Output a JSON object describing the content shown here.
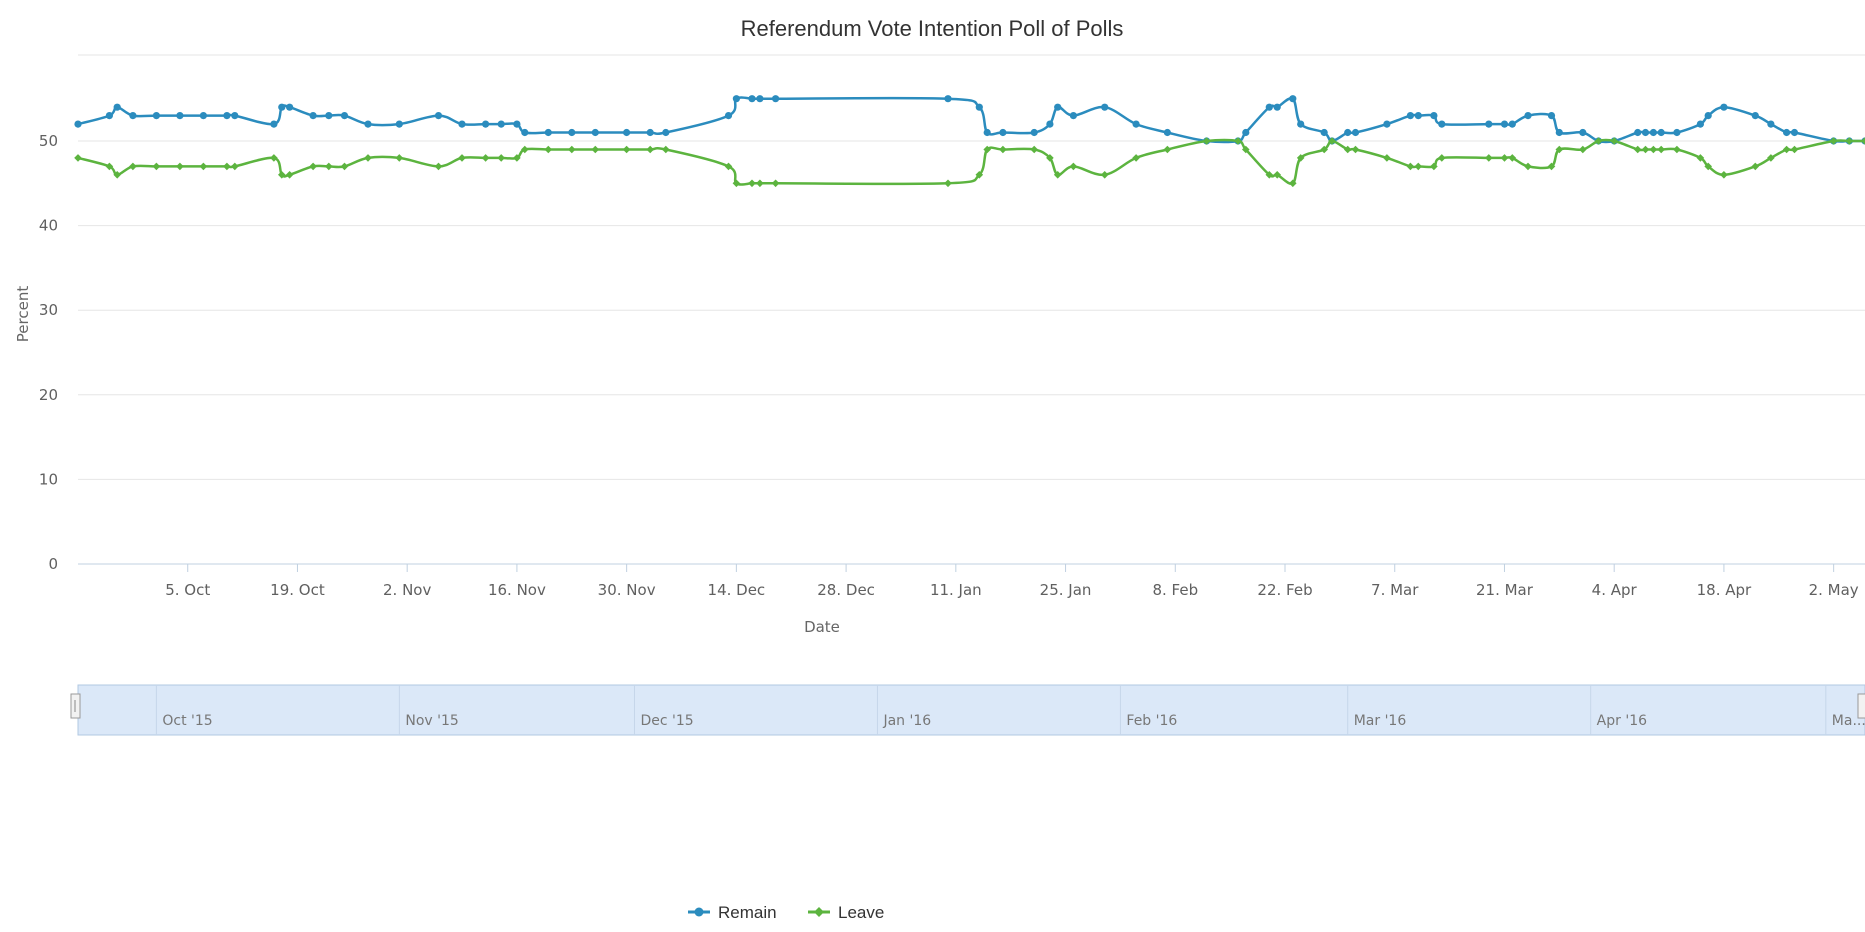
{
  "chart_data": {
    "type": "line",
    "title": "Referendum Vote Intention Poll of Polls",
    "xlabel": "Date",
    "ylabel": "Percent",
    "ylim": [
      0,
      50
    ],
    "yticks": [
      0,
      10,
      20,
      30,
      40,
      50
    ],
    "xlim": [
      "2015-09-21",
      "2016-05-06"
    ],
    "xticks": [
      {
        "date": "2015-10-05",
        "label": "5. Oct"
      },
      {
        "date": "2015-10-19",
        "label": "19. Oct"
      },
      {
        "date": "2015-11-02",
        "label": "2. Nov"
      },
      {
        "date": "2015-11-16",
        "label": "16. Nov"
      },
      {
        "date": "2015-11-30",
        "label": "30. Nov"
      },
      {
        "date": "2015-12-14",
        "label": "14. Dec"
      },
      {
        "date": "2015-12-28",
        "label": "28. Dec"
      },
      {
        "date": "2016-01-11",
        "label": "11. Jan"
      },
      {
        "date": "2016-01-25",
        "label": "25. Jan"
      },
      {
        "date": "2016-02-08",
        "label": "8. Feb"
      },
      {
        "date": "2016-02-22",
        "label": "22. Feb"
      },
      {
        "date": "2016-03-07",
        "label": "7. Mar"
      },
      {
        "date": "2016-03-21",
        "label": "21. Mar"
      },
      {
        "date": "2016-04-04",
        "label": "4. Apr"
      },
      {
        "date": "2016-04-18",
        "label": "18. Apr"
      },
      {
        "date": "2016-05-02",
        "label": "2. May"
      }
    ],
    "grid": true,
    "legend_position": "bottom-center",
    "series": [
      {
        "name": "Remain",
        "color": "#2b8cbe",
        "marker": "circle",
        "x": [
          "2015-09-21",
          "2015-09-25",
          "2015-09-26",
          "2015-09-28",
          "2015-10-01",
          "2015-10-04",
          "2015-10-07",
          "2015-10-10",
          "2015-10-11",
          "2015-10-16",
          "2015-10-17",
          "2015-10-18",
          "2015-10-21",
          "2015-10-23",
          "2015-10-25",
          "2015-10-28",
          "2015-11-01",
          "2015-11-06",
          "2015-11-09",
          "2015-11-12",
          "2015-11-14",
          "2015-11-16",
          "2015-11-17",
          "2015-11-20",
          "2015-11-23",
          "2015-11-26",
          "2015-11-30",
          "2015-12-03",
          "2015-12-05",
          "2015-12-13",
          "2015-12-14",
          "2015-12-16",
          "2015-12-17",
          "2015-12-19",
          "2016-01-10",
          "2016-01-14",
          "2016-01-15",
          "2016-01-17",
          "2016-01-21",
          "2016-01-23",
          "2016-01-24",
          "2016-01-26",
          "2016-01-30",
          "2016-02-03",
          "2016-02-07",
          "2016-02-12",
          "2016-02-16",
          "2016-02-17",
          "2016-02-20",
          "2016-02-21",
          "2016-02-23",
          "2016-02-24",
          "2016-02-27",
          "2016-02-28",
          "2016-03-01",
          "2016-03-02",
          "2016-03-06",
          "2016-03-09",
          "2016-03-10",
          "2016-03-12",
          "2016-03-13",
          "2016-03-19",
          "2016-03-21",
          "2016-03-22",
          "2016-03-24",
          "2016-03-27",
          "2016-03-28",
          "2016-03-31",
          "2016-04-02",
          "2016-04-04",
          "2016-04-07",
          "2016-04-08",
          "2016-04-09",
          "2016-04-10",
          "2016-04-12",
          "2016-04-15",
          "2016-04-16",
          "2016-04-18",
          "2016-04-22",
          "2016-04-24",
          "2016-04-26",
          "2016-04-27",
          "2016-05-02",
          "2016-05-04",
          "2016-05-06"
        ],
        "values": [
          52,
          53,
          54,
          53,
          53,
          53,
          53,
          53,
          53,
          52,
          54,
          54,
          53,
          53,
          53,
          52,
          52,
          53,
          52,
          52,
          52,
          52,
          51,
          51,
          51,
          51,
          51,
          51,
          51,
          53,
          55,
          55,
          55,
          55,
          55,
          54,
          51,
          51,
          51,
          52,
          54,
          53,
          54,
          52,
          51,
          50,
          50,
          51,
          54,
          54,
          55,
          52,
          51,
          50,
          51,
          51,
          52,
          53,
          53,
          53,
          52,
          52,
          52,
          52,
          53,
          53,
          51,
          51,
          50,
          50,
          51,
          51,
          51,
          51,
          51,
          52,
          53,
          54,
          53,
          52,
          51,
          51,
          50,
          50,
          50
        ]
      },
      {
        "name": "Leave",
        "color": "#5cb43f",
        "marker": "diamond",
        "x": [
          "2015-09-21",
          "2015-09-25",
          "2015-09-26",
          "2015-09-28",
          "2015-10-01",
          "2015-10-04",
          "2015-10-07",
          "2015-10-10",
          "2015-10-11",
          "2015-10-16",
          "2015-10-17",
          "2015-10-18",
          "2015-10-21",
          "2015-10-23",
          "2015-10-25",
          "2015-10-28",
          "2015-11-01",
          "2015-11-06",
          "2015-11-09",
          "2015-11-12",
          "2015-11-14",
          "2015-11-16",
          "2015-11-17",
          "2015-11-20",
          "2015-11-23",
          "2015-11-26",
          "2015-11-30",
          "2015-12-03",
          "2015-12-05",
          "2015-12-13",
          "2015-12-14",
          "2015-12-16",
          "2015-12-17",
          "2015-12-19",
          "2016-01-10",
          "2016-01-14",
          "2016-01-15",
          "2016-01-17",
          "2016-01-21",
          "2016-01-23",
          "2016-01-24",
          "2016-01-26",
          "2016-01-30",
          "2016-02-03",
          "2016-02-07",
          "2016-02-12",
          "2016-02-16",
          "2016-02-17",
          "2016-02-20",
          "2016-02-21",
          "2016-02-23",
          "2016-02-24",
          "2016-02-27",
          "2016-02-28",
          "2016-03-01",
          "2016-03-02",
          "2016-03-06",
          "2016-03-09",
          "2016-03-10",
          "2016-03-12",
          "2016-03-13",
          "2016-03-19",
          "2016-03-21",
          "2016-03-22",
          "2016-03-24",
          "2016-03-27",
          "2016-03-28",
          "2016-03-31",
          "2016-04-02",
          "2016-04-04",
          "2016-04-07",
          "2016-04-08",
          "2016-04-09",
          "2016-04-10",
          "2016-04-12",
          "2016-04-15",
          "2016-04-16",
          "2016-04-18",
          "2016-04-22",
          "2016-04-24",
          "2016-04-26",
          "2016-04-27",
          "2016-05-02",
          "2016-05-04",
          "2016-05-06"
        ],
        "values": [
          48,
          47,
          46,
          47,
          47,
          47,
          47,
          47,
          47,
          48,
          46,
          46,
          47,
          47,
          47,
          48,
          48,
          47,
          48,
          48,
          48,
          48,
          49,
          49,
          49,
          49,
          49,
          49,
          49,
          47,
          45,
          45,
          45,
          45,
          45,
          46,
          49,
          49,
          49,
          48,
          46,
          47,
          46,
          48,
          49,
          50,
          50,
          49,
          46,
          46,
          45,
          48,
          49,
          50,
          49,
          49,
          48,
          47,
          47,
          47,
          48,
          48,
          48,
          48,
          47,
          47,
          49,
          49,
          50,
          50,
          49,
          49,
          49,
          49,
          49,
          48,
          47,
          46,
          47,
          48,
          49,
          49,
          50,
          50,
          50
        ]
      }
    ]
  },
  "navigator": {
    "labels": [
      "Oct '15",
      "Nov '15",
      "Dec '15",
      "Jan '16",
      "Feb '16",
      "Mar '16",
      "Apr '16",
      "Ma..."
    ]
  },
  "legend": {
    "items": [
      {
        "label": "Remain",
        "color": "#2b8cbe"
      },
      {
        "label": "Leave",
        "color": "#5cb43f"
      }
    ]
  }
}
